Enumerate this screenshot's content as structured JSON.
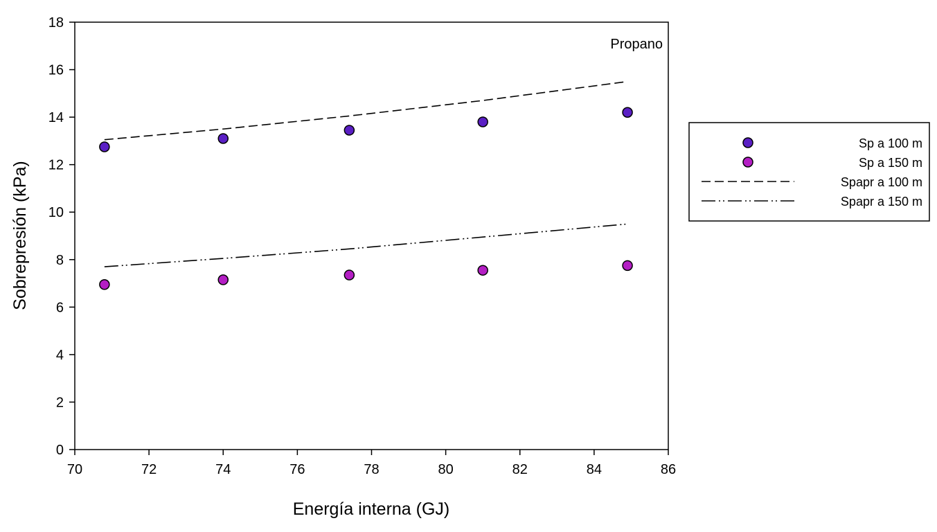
{
  "chart_data": {
    "type": "scatter",
    "xlabel": "Energía interna (GJ)",
    "ylabel": "Sobrepresión (kPa)",
    "annotation": "Propano",
    "xlim": [
      70,
      86
    ],
    "ylim": [
      0,
      18
    ],
    "xticks": [
      "70",
      "72",
      "74",
      "76",
      "78",
      "80",
      "82",
      "84",
      "86"
    ],
    "yticks": [
      "0",
      "2",
      "4",
      "6",
      "8",
      "10",
      "12",
      "14",
      "16",
      "18"
    ],
    "grid": false,
    "legend_position": "right",
    "series": [
      {
        "name": "Sp a 100 m",
        "kind": "points",
        "color": "#5a1fc4",
        "x": [
          70.8,
          74.0,
          77.4,
          81.0,
          84.9
        ],
        "y": [
          12.75,
          13.1,
          13.45,
          13.8,
          14.2
        ]
      },
      {
        "name": "Sp a 150 m",
        "kind": "points",
        "color": "#b41ec4",
        "x": [
          70.8,
          74.0,
          77.4,
          81.0,
          84.9
        ],
        "y": [
          6.95,
          7.15,
          7.35,
          7.55,
          7.75
        ]
      },
      {
        "name": "Spapr a 100 m",
        "kind": "line",
        "dash": "dashed",
        "color": "#000000",
        "x": [
          70.8,
          74.0,
          77.4,
          81.0,
          84.9
        ],
        "y": [
          13.05,
          13.5,
          14.05,
          14.7,
          15.5
        ]
      },
      {
        "name": "Spapr a 150 m",
        "kind": "line",
        "dash": "dash-dot-dot",
        "color": "#000000",
        "x": [
          70.8,
          74.0,
          77.4,
          81.0,
          84.9
        ],
        "y": [
          7.7,
          8.05,
          8.45,
          8.95,
          9.5
        ]
      }
    ]
  }
}
